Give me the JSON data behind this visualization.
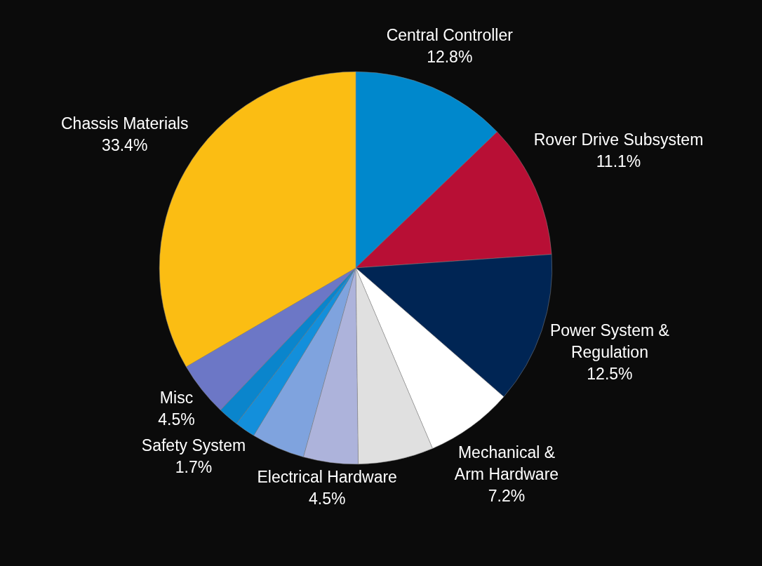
{
  "chart_data": {
    "type": "pie",
    "categories": [
      "Central Controller",
      "Rover Drive Subsystem",
      "Power System &\nRegulation",
      "Mechanical &\nArm Hardware",
      null,
      "Electrical Hardware",
      null,
      null,
      "Safety System",
      "Misc",
      "Chassis Materials"
    ],
    "values": [
      12.8,
      11.1,
      12.5,
      7.2,
      6.2,
      4.5,
      4.4,
      1.7,
      1.7,
      4.5,
      33.4
    ],
    "value_labels": [
      "12.8%",
      "11.1%",
      "12.5%",
      "7.2%",
      null,
      "4.5%",
      null,
      null,
      "1.7%",
      "4.5%",
      "33.4%"
    ],
    "colors": [
      "#0088cc",
      "#b80f35",
      "#002554",
      "#ffffff",
      "#e0e0e0",
      "#adb3db",
      "#7fa3de",
      "#138fdb",
      "#0a85cc",
      "#6c77c6",
      "#fbbd13"
    ],
    "legend": false
  }
}
